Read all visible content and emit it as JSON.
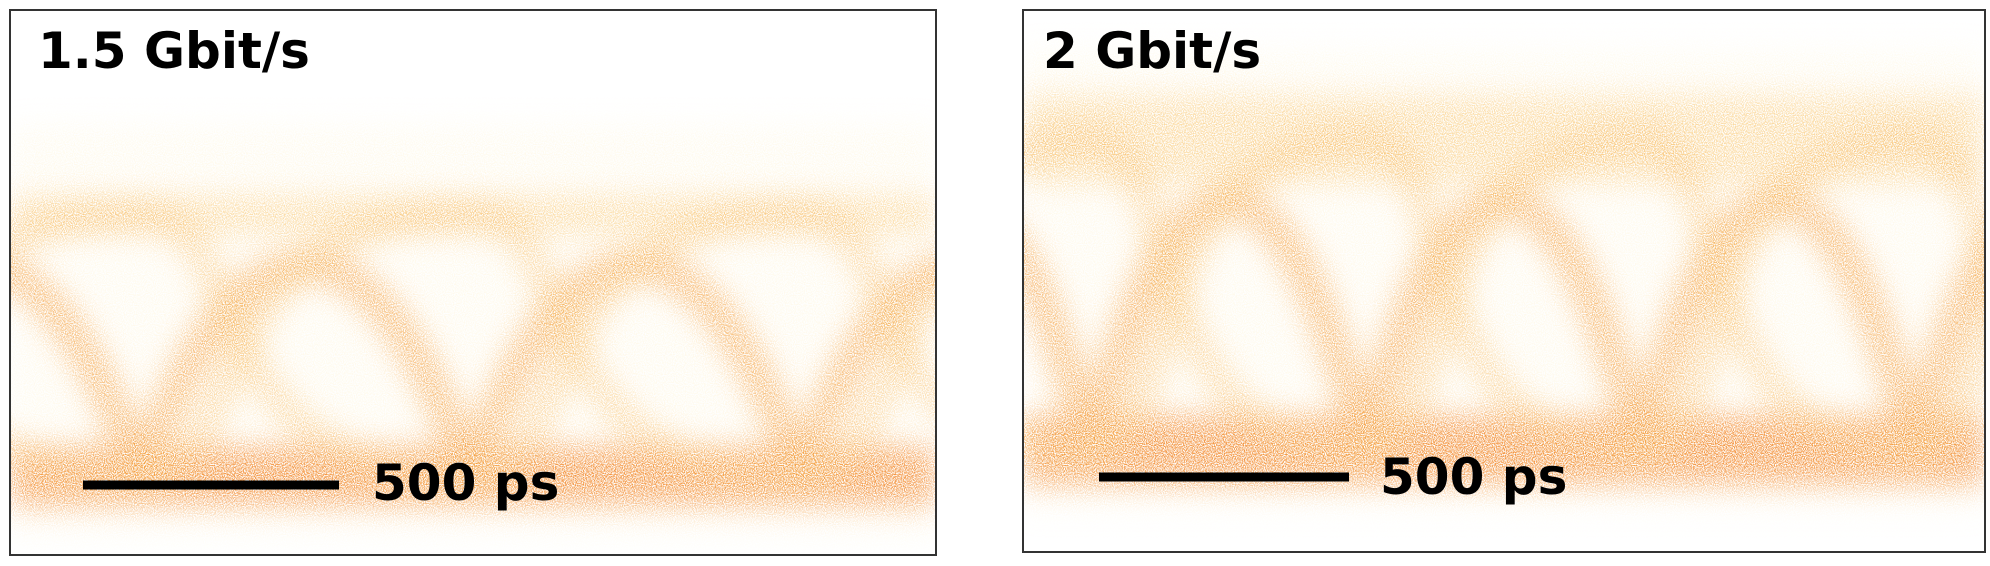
{
  "panels": [
    {
      "title": "1.5 Gbit/s",
      "scale_label": "500 ps"
    },
    {
      "title": "2 Gbit/s",
      "scale_label": "500 ps"
    }
  ]
}
